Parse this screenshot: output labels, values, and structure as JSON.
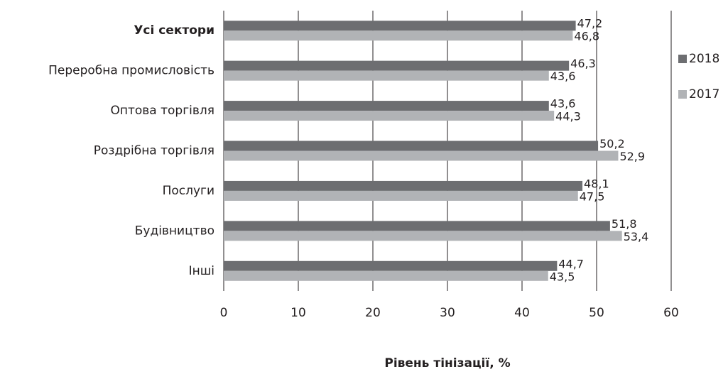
{
  "chart_data": {
    "type": "bar",
    "orientation": "horizontal",
    "x_label": "Рівень тінізації, %",
    "categories": [
      "Усі сектори",
      "Переробна промисловість",
      "Оптова торгівля",
      "Роздрібна торгівля",
      "Послуги",
      "Будівництво",
      "Інші"
    ],
    "series": [
      {
        "name": "2018",
        "color": "#6d6e71",
        "values": [
          47.2,
          46.3,
          43.6,
          50.2,
          48.1,
          51.8,
          44.7
        ],
        "value_labels": [
          "47,2",
          "46,3",
          "43,6",
          "50,2",
          "48,1",
          "51,8",
          "44,7"
        ]
      },
      {
        "name": "2017",
        "color": "#b1b3b6",
        "values": [
          46.8,
          43.6,
          44.3,
          52.9,
          47.5,
          53.4,
          43.5
        ],
        "value_labels": [
          "46,8",
          "43,6",
          "44,3",
          "52,9",
          "47,5",
          "53,4",
          "43,5"
        ]
      }
    ],
    "xlim": [
      0,
      60
    ],
    "xticks": [
      0,
      10,
      20,
      30,
      40,
      50,
      60
    ],
    "grid": true,
    "legend": "right"
  }
}
